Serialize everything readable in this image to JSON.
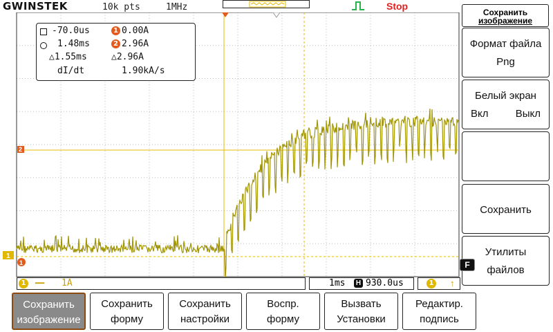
{
  "topbar": {
    "logo": "GWINSTEK",
    "record_length": "10k pts",
    "sample_rate": "1MHz",
    "run_status": "Stop",
    "trigger_icon": "rising-edge-icon"
  },
  "readout": {
    "cursor1_time": "-70.0us",
    "cursor1_ch1": "0.00A",
    "cursor2_time": "1.48ms",
    "cursor2_ch2": "2.96A",
    "delta_time": "△1.55ms",
    "delta_ch2": "△2.96A",
    "rate_label": "dI/dt",
    "rate_value": "1.90kA/s",
    "ch1_marker": "1",
    "ch2_marker": "2"
  },
  "markers": {
    "ch1_ground": "1",
    "ch1_level": "1",
    "ch2_level": "2"
  },
  "statusbar": {
    "ch1_num": "1",
    "ch1_scale": "1A",
    "timebase": "1ms",
    "horiz_symbol": "H",
    "h_position": "930.0us",
    "trig_ch": "1"
  },
  "side_menu": {
    "title_line1": "Сохранить",
    "title_line2": "изображение",
    "format_label": "Формат файла",
    "format_value": "Png",
    "white_screen_label": "Белый экран",
    "white_on": "Вкл",
    "white_off": "Выкл",
    "save_label": "Сохранить",
    "file_utils_line1": "Утилиты",
    "file_utils_line2": "файлов",
    "f_tab": "F"
  },
  "bottom_menu": {
    "items": [
      {
        "line1": "Сохранить",
        "line2": "изображение"
      },
      {
        "line1": "Сохранить",
        "line2": "форму"
      },
      {
        "line1": "Сохранить",
        "line2": "настройки"
      },
      {
        "line1": "Воспр.",
        "line2": "форму"
      },
      {
        "line1": "Вызвать",
        "line2": "Установки"
      },
      {
        "line1": "Редактир.",
        "line2": "подпись"
      }
    ]
  },
  "colors": {
    "trace": "#a09400",
    "cursor": "#e8b800",
    "grid": "#bdbdbd",
    "run_status": "#e02020",
    "ch_marker": "#e25b1d"
  }
}
